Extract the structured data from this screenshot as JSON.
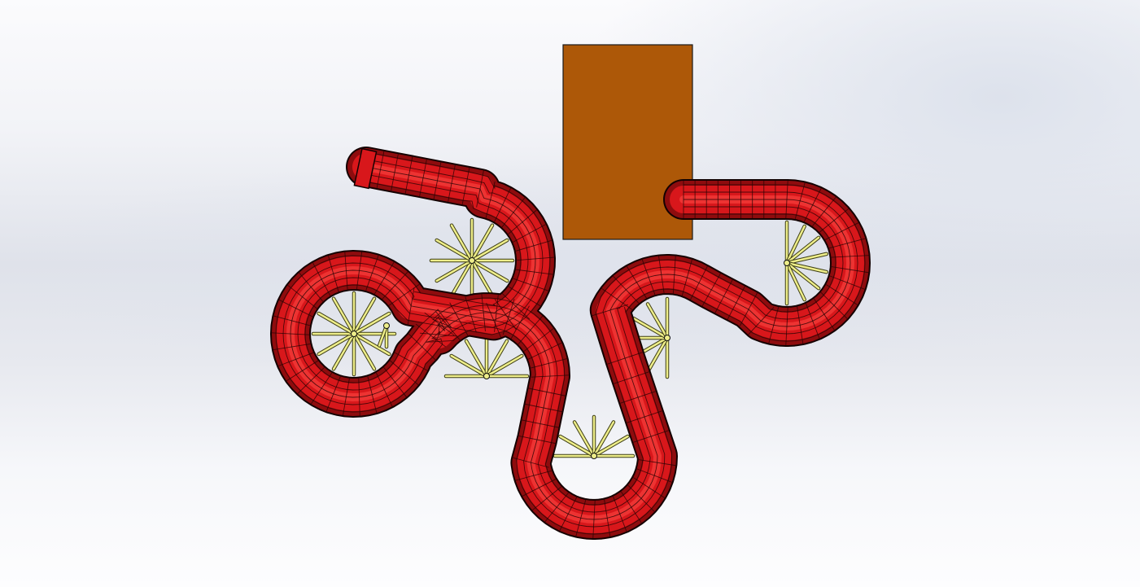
{
  "scene": {
    "colors": {
      "background_top": "#fbfbfd",
      "background_mid": "#dfe2ea",
      "tube_fill": "#d8171b",
      "tube_highlight": "#ff4a45",
      "tube_shadow": "#8e0c0e",
      "mesh_lines": "#2a0404",
      "block_fill": "#ad5808",
      "spoke_fill": "#eeee8a",
      "spoke_outline": "#3d3d14"
    },
    "objects": [
      {
        "name": "rectangular-block",
        "kind": "box"
      },
      {
        "name": "red-meandering-tube",
        "kind": "swept-tube"
      },
      {
        "name": "yellow-spoke-hubs",
        "kind": "spoke-wheel",
        "count": 7
      }
    ]
  }
}
